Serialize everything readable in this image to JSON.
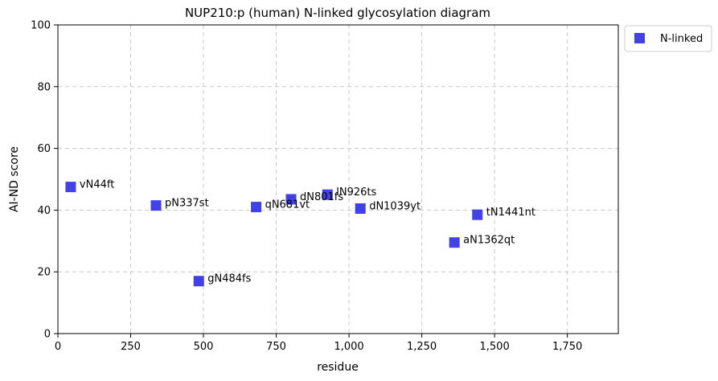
{
  "chart_data": {
    "type": "scatter",
    "title": "NUP210:p (human) N-linked glycosylation diagram",
    "xlabel": "residue",
    "ylabel": "AI-ND score",
    "xlim": [
      0,
      1925
    ],
    "ylim": [
      0,
      100
    ],
    "x_ticks": [
      0,
      250,
      500,
      750,
      1000,
      1250,
      1500,
      1750
    ],
    "x_tick_labels": [
      "0",
      "250",
      "500",
      "750",
      "1,000",
      "1,250",
      "1,500",
      "1,750"
    ],
    "y_ticks": [
      0,
      20,
      40,
      60,
      80,
      100
    ],
    "y_tick_labels": [
      "0",
      "20",
      "40",
      "60",
      "80",
      "100"
    ],
    "grid": true,
    "legend_position": "outside top-right",
    "series": [
      {
        "name": "N-linked",
        "color": "#2020e0",
        "marker": "square",
        "points": [
          {
            "x": 44,
            "y": 47.5,
            "label": "vN44ft"
          },
          {
            "x": 337,
            "y": 41.5,
            "label": "pN337st"
          },
          {
            "x": 484,
            "y": 17,
            "label": "gN484fs"
          },
          {
            "x": 681,
            "y": 41,
            "label": "qN681vt"
          },
          {
            "x": 801,
            "y": 43.5,
            "label": "dN801fs"
          },
          {
            "x": 926,
            "y": 45,
            "label": "lN926ts"
          },
          {
            "x": 1039,
            "y": 40.5,
            "label": "dN1039yt"
          },
          {
            "x": 1362,
            "y": 29.5,
            "label": "aN1362qt"
          },
          {
            "x": 1441,
            "y": 38.5,
            "label": "tN1441nt"
          }
        ]
      }
    ]
  }
}
